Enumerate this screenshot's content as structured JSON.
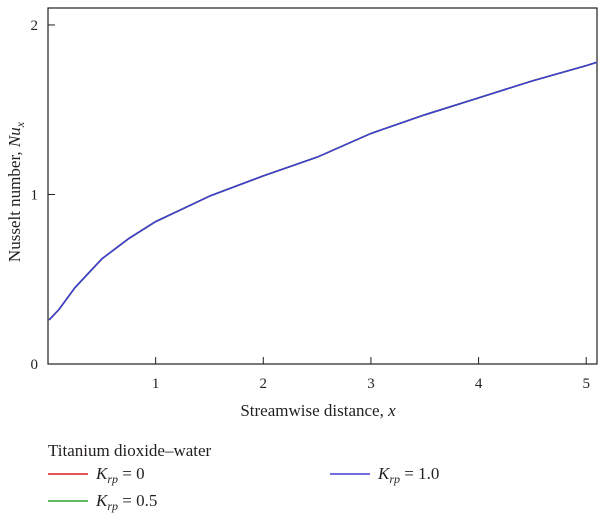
{
  "chart_data": {
    "type": "line",
    "title": "",
    "xlabel": "Streamwise distance,",
    "xlabel_var": "x",
    "ylabel": "Nusselt number,",
    "ylabel_var": "Nu",
    "ylabel_sub": "x",
    "xlim": [
      0,
      5.1
    ],
    "ylim": [
      0,
      2.1
    ],
    "xticks": [
      1,
      2,
      3,
      4,
      5
    ],
    "yticks": [
      0,
      1,
      2
    ],
    "grid": false,
    "legend": {
      "title": "Titanium dioxide–water",
      "placement": "bottom-below-axes"
    },
    "x": [
      0.01,
      0.1,
      0.25,
      0.5,
      0.75,
      1.0,
      1.5,
      2.0,
      2.5,
      3.0,
      3.5,
      4.0,
      4.5,
      5.0,
      5.1
    ],
    "series": [
      {
        "name_var": "K",
        "name_sub": "rp",
        "name_rest": " = 0",
        "color": "#e41a1c",
        "values": [
          0.26,
          0.32,
          0.45,
          0.62,
          0.74,
          0.84,
          0.99,
          1.11,
          1.22,
          1.36,
          1.47,
          1.57,
          1.67,
          1.76,
          1.78
        ]
      },
      {
        "name_var": "K",
        "name_sub": "rp",
        "name_rest": " = 0.5",
        "color": "#2ca02c",
        "values": [
          0.26,
          0.32,
          0.45,
          0.62,
          0.74,
          0.84,
          0.99,
          1.11,
          1.22,
          1.36,
          1.47,
          1.57,
          1.67,
          1.76,
          1.78
        ]
      },
      {
        "name_var": "K",
        "name_sub": "rp",
        "name_rest": " = 1.0",
        "color": "#4040d0",
        "values": [
          0.26,
          0.32,
          0.45,
          0.62,
          0.74,
          0.84,
          0.99,
          1.11,
          1.22,
          1.36,
          1.47,
          1.57,
          1.67,
          1.76,
          1.78
        ]
      }
    ]
  }
}
